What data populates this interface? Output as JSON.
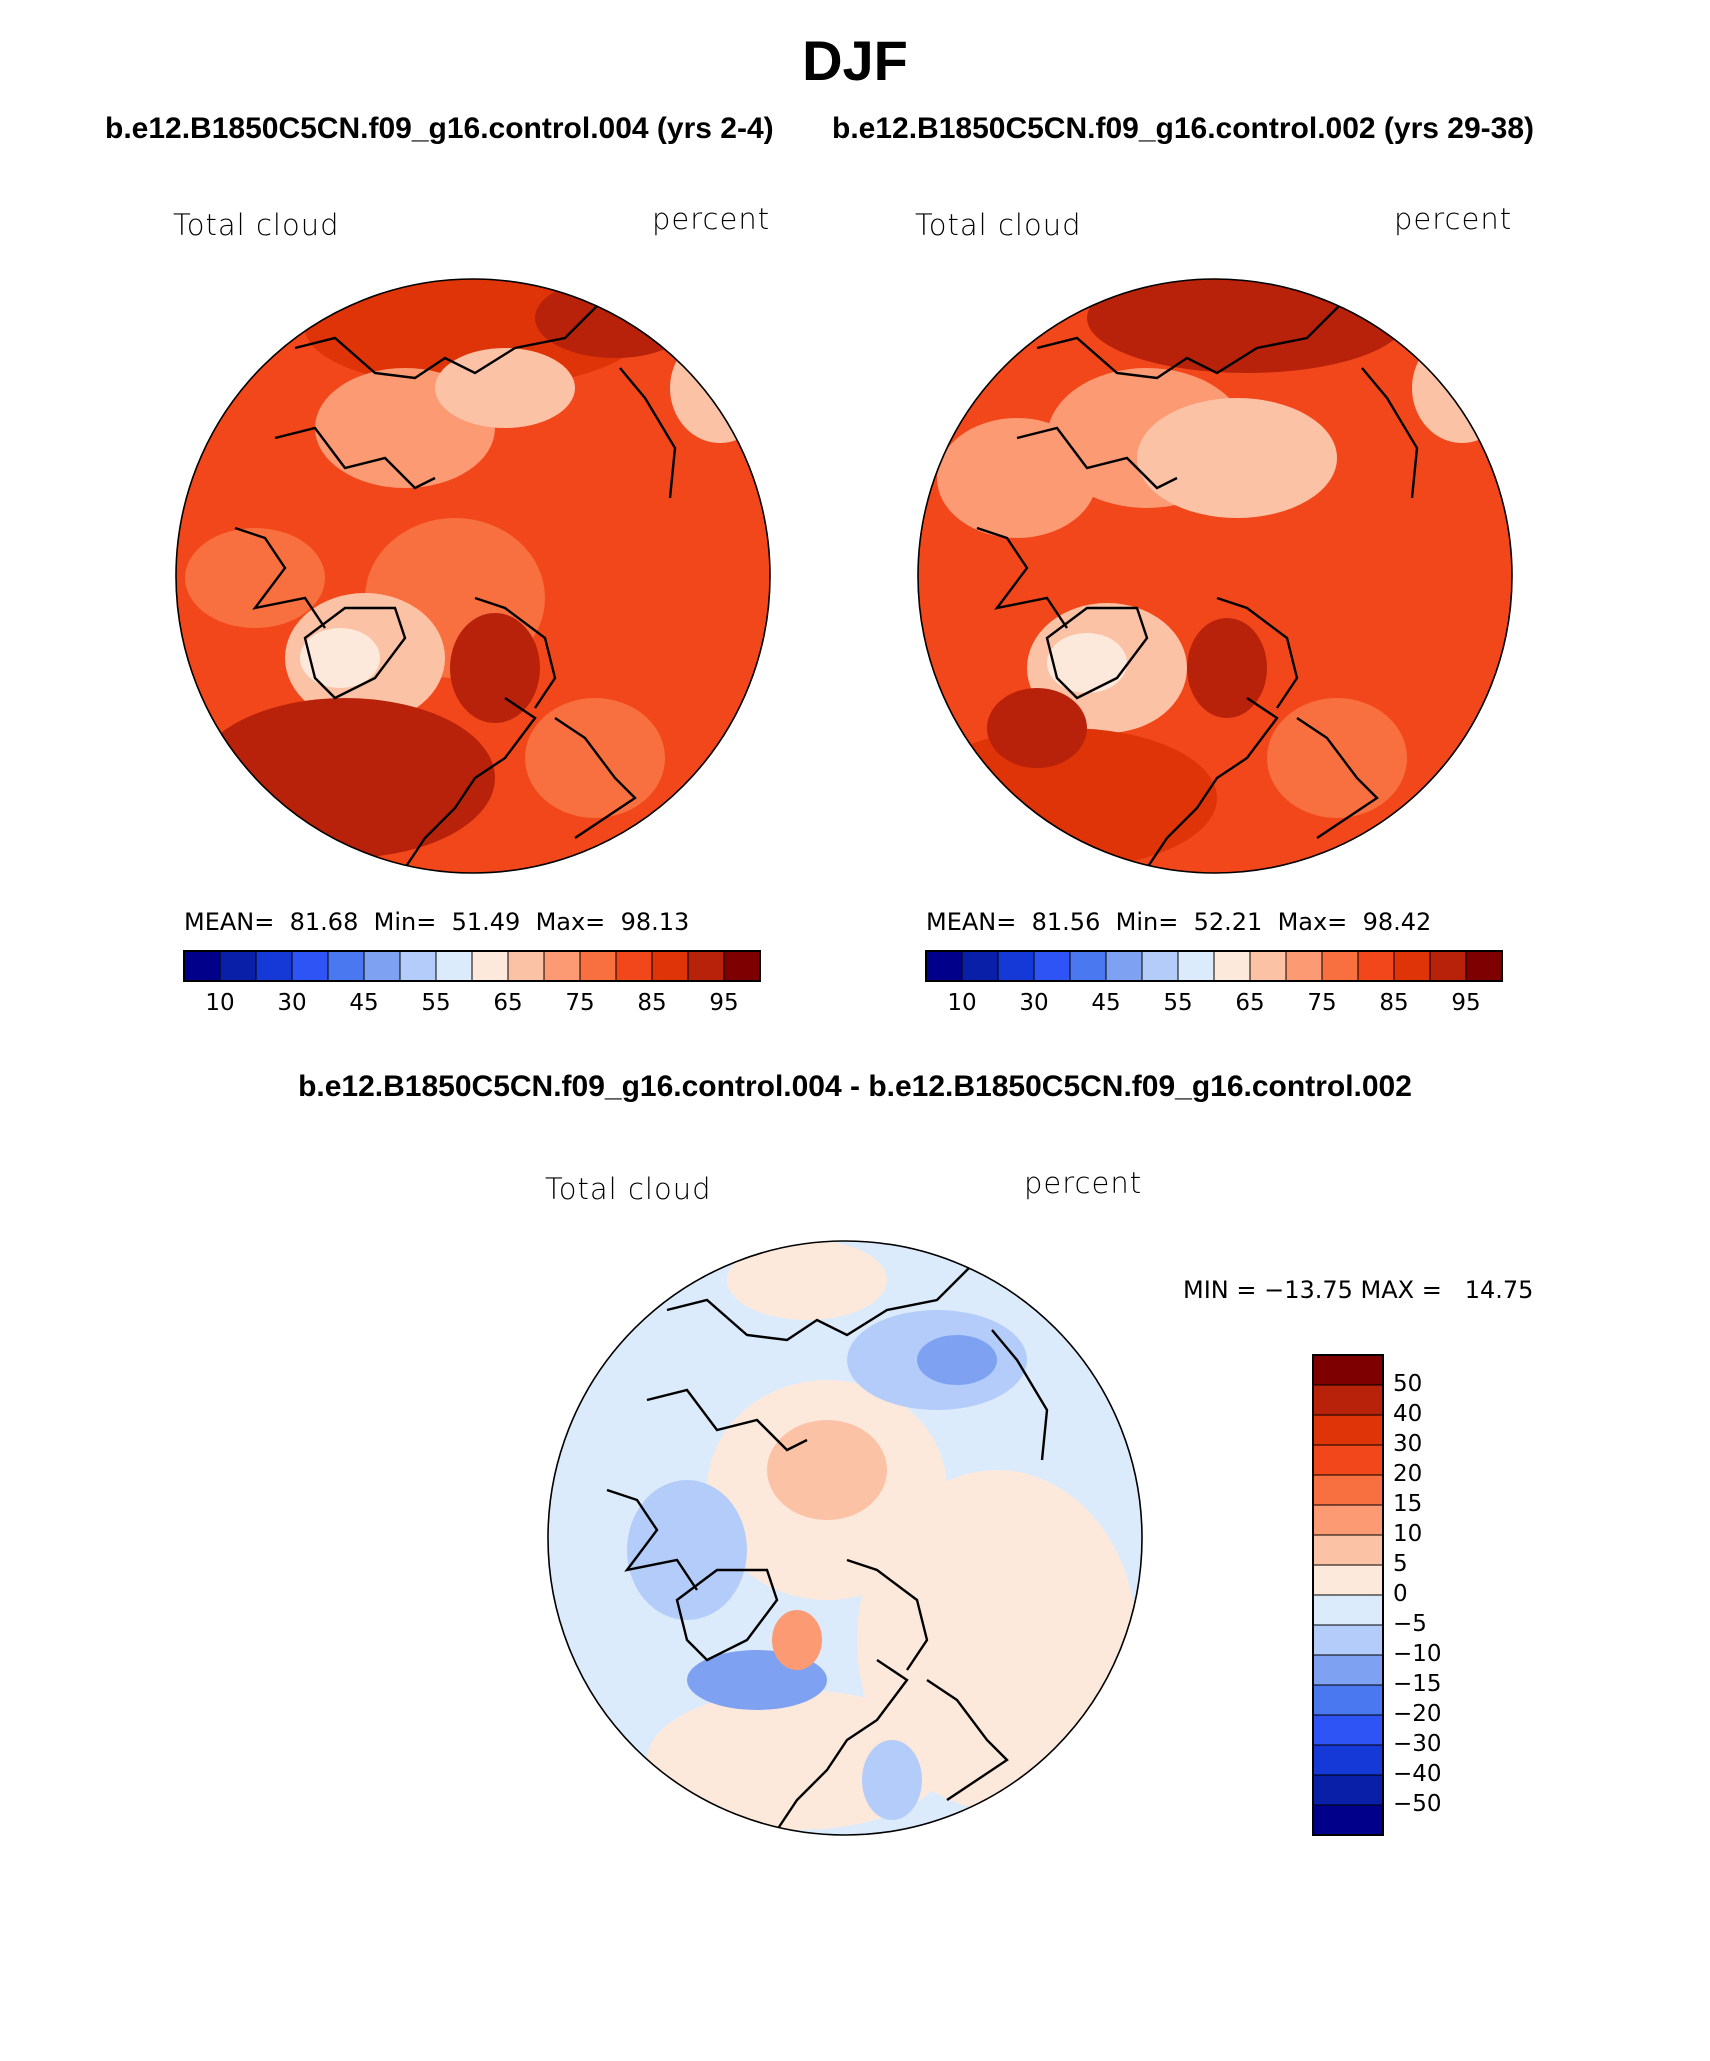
{
  "season": "DJF",
  "case_titles": {
    "left": "b.e12.B1850C5CN.f09_g16.control.004 (yrs 2-4)",
    "right": "b.e12.B1850C5CN.f09_g16.control.002 (yrs 29-38)"
  },
  "diff_title": "b.e12.B1850C5CN.f09_g16.control.004 - b.e12.B1850C5CN.f09_g16.control.002",
  "colors": {
    "abs_scale": [
      "#00008b",
      "#0a1fa8",
      "#1539d6",
      "#2f54f5",
      "#4a78f0",
      "#7fa1f2",
      "#b3ccf9",
      "#dcebfb",
      "#fde9dc",
      "#fcc2a6",
      "#fb9a73",
      "#f8703f",
      "#f2471a",
      "#df3308",
      "#b8220a",
      "#7f0000"
    ],
    "diff_scale": [
      "#00008b",
      "#0a1fa8",
      "#1539d6",
      "#2f54f5",
      "#4a78f0",
      "#7fa1f2",
      "#b3ccf9",
      "#dcebfb",
      "#fde9dc",
      "#fcc2a6",
      "#fb9a73",
      "#f8703f",
      "#f2471a",
      "#df3308",
      "#b8220a",
      "#7f0000"
    ]
  },
  "chart_data": [
    {
      "type": "heatmap",
      "panel": "top-left",
      "variable_label": "Total cloud",
      "units_label": "percent",
      "projection": "north polar stereographic",
      "mean_label": "MEAN=",
      "mean": "81.68",
      "min_label": "Min=",
      "min": "51.49",
      "max_label": "Max=",
      "max": "98.13",
      "colorbar_ticks": [
        "10",
        "30",
        "45",
        "55",
        "65",
        "75",
        "85",
        "95"
      ],
      "colorbar_levels": [
        10,
        20,
        30,
        40,
        45,
        50,
        55,
        60,
        65,
        70,
        75,
        80,
        85,
        90,
        95
      ]
    },
    {
      "type": "heatmap",
      "panel": "top-right",
      "variable_label": "Total cloud",
      "units_label": "percent",
      "projection": "north polar stereographic",
      "mean_label": "MEAN=",
      "mean": "81.56",
      "min_label": "Min=",
      "min": "52.21",
      "max_label": "Max=",
      "max": "98.42",
      "colorbar_ticks": [
        "10",
        "30",
        "45",
        "55",
        "65",
        "75",
        "85",
        "95"
      ],
      "colorbar_levels": [
        10,
        20,
        30,
        40,
        45,
        50,
        55,
        60,
        65,
        70,
        75,
        80,
        85,
        90,
        95
      ]
    },
    {
      "type": "heatmap",
      "panel": "bottom-difference",
      "variable_label": "Total cloud",
      "units_label": "percent",
      "projection": "north polar stereographic",
      "range_text": "MIN = −13.75 MAX =   14.75",
      "diff_min": -13.75,
      "diff_max": 14.75,
      "colorbar_ticks": [
        "50",
        "40",
        "30",
        "20",
        "15",
        "10",
        "5",
        "0",
        "−5",
        "−10",
        "−15",
        "−20",
        "−30",
        "−40",
        "−50"
      ]
    }
  ]
}
